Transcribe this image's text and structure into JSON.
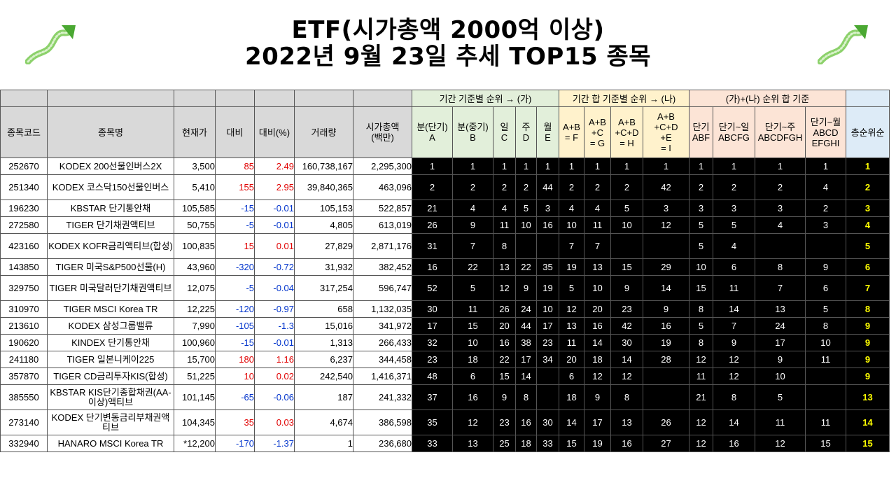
{
  "title": {
    "line1": "ETF(시가총액 2000억 이상)",
    "line2": "2022년 9월 23일 추세 TOP15 종목"
  },
  "icons": {
    "left": "up-arrow-icon",
    "right": "up-arrow-icon",
    "color": "#6cc24a"
  },
  "group_headers": {
    "a": "기간 기준별 순위 → (가)",
    "b": "기간 합 기준별 순위 → (나)",
    "c": "(가)+(나) 순위 합 기준"
  },
  "columns": {
    "code": "종목코드",
    "name": "종목명",
    "price": "현재가",
    "change": "대비",
    "change_pct": "대비(%)",
    "volume": "거래량",
    "mcap_1": "시가총액",
    "mcap_2": "(백만)",
    "a1": "분(단기)",
    "a2": "A",
    "b1": "분(중기)",
    "b2": "B",
    "c1": "일",
    "c2": "C",
    "d1": "주",
    "d2": "D",
    "e1": "월",
    "e2": "E",
    "f1": "A+B",
    "f2": "= F",
    "g1": "A+B",
    "g2": "+C",
    "g3": "= G",
    "h1": "A+B",
    "h2": "+C+D",
    "h3": "= H",
    "i1": "A+B",
    "i2": "+C+D",
    "i3": "+E",
    "i4": "= I",
    "abf1": "단기",
    "abf2": "ABF",
    "abcfg1": "단기~일",
    "abcfg2": "ABCFG",
    "abcdfgh1": "단기~주",
    "abcdfgh2": "ABCDFGH",
    "all1": "단기~월",
    "all2": "ABCD",
    "all3": "EFGHI",
    "total": "총순위순"
  },
  "colors": {
    "up": "#e00000",
    "down": "#0033cc",
    "final_rank": "#ffff00"
  },
  "rows": [
    {
      "code": "252670",
      "name": "KODEX 200선물인버스2X",
      "price": "3,500",
      "change": "85",
      "pct": "2.49",
      "volume": "160,738,167",
      "mcap": "2,295,300",
      "ranks": [
        "1",
        "1",
        "1",
        "1",
        "1",
        "1",
        "1",
        "1",
        "1",
        "1",
        "1",
        "1",
        "1"
      ],
      "final": "1"
    },
    {
      "code": "251340",
      "name": "KODEX 코스닥150선물인버스",
      "price": "5,410",
      "change": "155",
      "pct": "2.95",
      "volume": "39,840,365",
      "mcap": "463,096",
      "ranks": [
        "2",
        "2",
        "2",
        "2",
        "44",
        "2",
        "2",
        "2",
        "42",
        "2",
        "2",
        "2",
        "4"
      ],
      "final": "2"
    },
    {
      "code": "196230",
      "name": "KBSTAR 단기통안채",
      "price": "105,585",
      "change": "-15",
      "pct": "-0.01",
      "volume": "105,153",
      "mcap": "522,857",
      "ranks": [
        "21",
        "4",
        "4",
        "5",
        "3",
        "4",
        "4",
        "5",
        "3",
        "3",
        "3",
        "3",
        "2"
      ],
      "final": "3"
    },
    {
      "code": "272580",
      "name": "TIGER 단기채권액티브",
      "price": "50,755",
      "change": "-5",
      "pct": "-0.01",
      "volume": "4,805",
      "mcap": "613,019",
      "ranks": [
        "26",
        "9",
        "11",
        "10",
        "16",
        "10",
        "11",
        "10",
        "12",
        "5",
        "5",
        "4",
        "3"
      ],
      "final": "4"
    },
    {
      "code": "423160",
      "name": "KODEX KOFR금리액티브(합성)",
      "price": "100,835",
      "change": "15",
      "pct": "0.01",
      "volume": "27,829",
      "mcap": "2,871,176",
      "ranks": [
        "31",
        "7",
        "8",
        "",
        "",
        "7",
        "7",
        "",
        "",
        "5",
        "4",
        "",
        ""
      ],
      "final": "5"
    },
    {
      "code": "143850",
      "name": "TIGER 미국S&P500선물(H)",
      "price": "43,960",
      "change": "-320",
      "pct": "-0.72",
      "volume": "31,932",
      "mcap": "382,452",
      "ranks": [
        "16",
        "22",
        "13",
        "22",
        "35",
        "19",
        "13",
        "15",
        "29",
        "10",
        "6",
        "8",
        "9"
      ],
      "final": "6"
    },
    {
      "code": "329750",
      "name": "TIGER 미국달러단기채권액티브",
      "price": "12,075",
      "change": "-5",
      "pct": "-0.04",
      "volume": "317,254",
      "mcap": "596,747",
      "ranks": [
        "52",
        "5",
        "12",
        "9",
        "19",
        "5",
        "10",
        "9",
        "14",
        "15",
        "11",
        "7",
        "6"
      ],
      "final": "7"
    },
    {
      "code": "310970",
      "name": "TIGER MSCI Korea TR",
      "price": "12,225",
      "change": "-120",
      "pct": "-0.97",
      "volume": "658",
      "mcap": "1,132,035",
      "ranks": [
        "30",
        "11",
        "26",
        "24",
        "10",
        "12",
        "20",
        "23",
        "9",
        "8",
        "14",
        "13",
        "5"
      ],
      "final": "8"
    },
    {
      "code": "213610",
      "name": "KODEX 삼성그룹밸류",
      "price": "7,990",
      "change": "-105",
      "pct": "-1.3",
      "volume": "15,016",
      "mcap": "341,972",
      "ranks": [
        "17",
        "15",
        "20",
        "44",
        "17",
        "13",
        "16",
        "42",
        "16",
        "5",
        "7",
        "24",
        "8"
      ],
      "final": "9"
    },
    {
      "code": "190620",
      "name": "KINDEX 단기통안채",
      "price": "100,960",
      "change": "-15",
      "pct": "-0.01",
      "volume": "1,313",
      "mcap": "266,433",
      "ranks": [
        "32",
        "10",
        "16",
        "38",
        "23",
        "11",
        "14",
        "30",
        "19",
        "8",
        "9",
        "17",
        "10"
      ],
      "final": "9"
    },
    {
      "code": "241180",
      "name": "TIGER 일본니케이225",
      "price": "15,700",
      "change": "180",
      "pct": "1.16",
      "volume": "6,237",
      "mcap": "344,458",
      "ranks": [
        "23",
        "18",
        "22",
        "17",
        "34",
        "20",
        "18",
        "14",
        "28",
        "12",
        "12",
        "9",
        "11"
      ],
      "final": "9"
    },
    {
      "code": "357870",
      "name": "TIGER CD금리투자KIS(합성)",
      "price": "51,225",
      "change": "10",
      "pct": "0.02",
      "volume": "242,540",
      "mcap": "1,416,371",
      "ranks": [
        "48",
        "6",
        "15",
        "14",
        "",
        "6",
        "12",
        "12",
        "",
        "11",
        "12",
        "10",
        ""
      ],
      "final": "9"
    },
    {
      "code": "385550",
      "name": "KBSTAR KIS단기종합채권(AA-이상)액티브",
      "price": "101,145",
      "change": "-65",
      "pct": "-0.06",
      "volume": "187",
      "mcap": "241,332",
      "ranks": [
        "37",
        "16",
        "9",
        "8",
        "",
        "18",
        "9",
        "8",
        "",
        "21",
        "8",
        "5",
        ""
      ],
      "final": "13"
    },
    {
      "code": "273140",
      "name": "KODEX 단기변동금리부채권액티브",
      "price": "104,345",
      "change": "35",
      "pct": "0.03",
      "volume": "4,674",
      "mcap": "386,598",
      "ranks": [
        "35",
        "12",
        "23",
        "16",
        "30",
        "14",
        "17",
        "13",
        "26",
        "12",
        "14",
        "11",
        "11"
      ],
      "final": "14"
    },
    {
      "code": "332940",
      "name": "HANARO MSCI Korea TR",
      "price": "*12,200",
      "change": "-170",
      "pct": "-1.37",
      "volume": "1",
      "mcap": "236,680",
      "ranks": [
        "33",
        "13",
        "25",
        "18",
        "33",
        "15",
        "19",
        "16",
        "27",
        "12",
        "16",
        "12",
        "15"
      ],
      "final": "15"
    }
  ]
}
